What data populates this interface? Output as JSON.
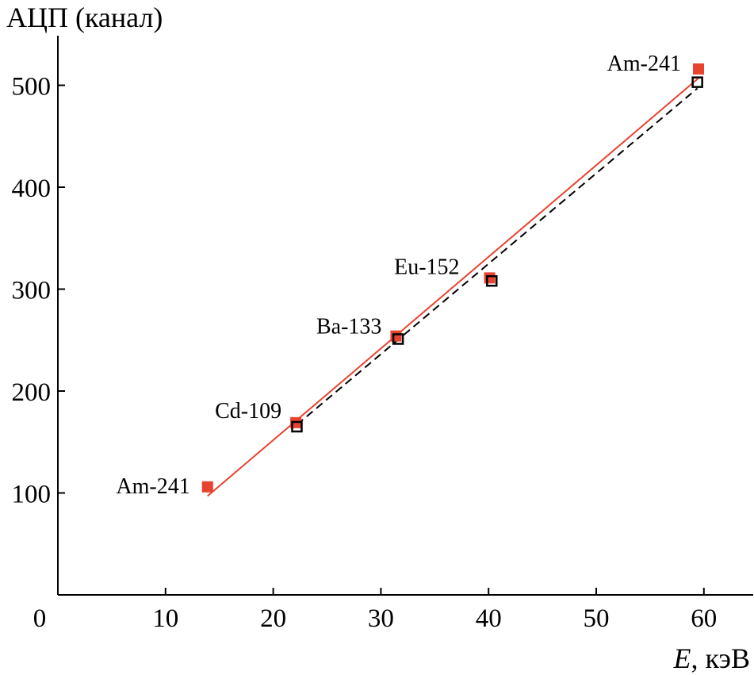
{
  "chart_data": {
    "type": "scatter",
    "ylabel": "АЦП (канал)",
    "xlabel_symbol": "E",
    "xlabel_unit": ", кэВ",
    "xlim": [
      0,
      65
    ],
    "ylim": [
      0,
      550
    ],
    "x_ticks": [
      10,
      20,
      30,
      40,
      50,
      60
    ],
    "y_ticks": [
      100,
      200,
      300,
      400,
      500
    ],
    "origin_label": "0",
    "grid": false,
    "colors": {
      "series_a": "#e8432e",
      "series_b": "#000000"
    },
    "series": [
      {
        "marker": "filled-square",
        "color": "#e8432e",
        "points": [
          {
            "x": 13.9,
            "y": 106
          },
          {
            "x": 22.1,
            "y": 169
          },
          {
            "x": 31.4,
            "y": 254
          },
          {
            "x": 40.1,
            "y": 311
          },
          {
            "x": 59.5,
            "y": 516
          }
        ],
        "fit_line": {
          "from": {
            "x": 13.9,
            "y": 97
          },
          "to": {
            "x": 59.5,
            "y": 507
          },
          "style": "solid"
        }
      },
      {
        "marker": "open-square",
        "color": "#000000",
        "points": [
          {
            "x": 22.2,
            "y": 165
          },
          {
            "x": 31.6,
            "y": 251
          },
          {
            "x": 40.3,
            "y": 308
          },
          {
            "x": 59.4,
            "y": 503
          }
        ],
        "fit_line": {
          "from": {
            "x": 22.2,
            "y": 167
          },
          "to": {
            "x": 59.4,
            "y": 497
          },
          "style": "dashed"
        }
      }
    ],
    "annotations": [
      {
        "text": "Am-241",
        "x": 13.9,
        "y": 106
      },
      {
        "text": "Cd-109",
        "x": 22.1,
        "y": 169
      },
      {
        "text": "Ba-133",
        "x": 31.4,
        "y": 254
      },
      {
        "text": "Eu-152",
        "x": 40.1,
        "y": 311
      },
      {
        "text": "Am-241",
        "x": 59.5,
        "y": 516
      }
    ]
  }
}
